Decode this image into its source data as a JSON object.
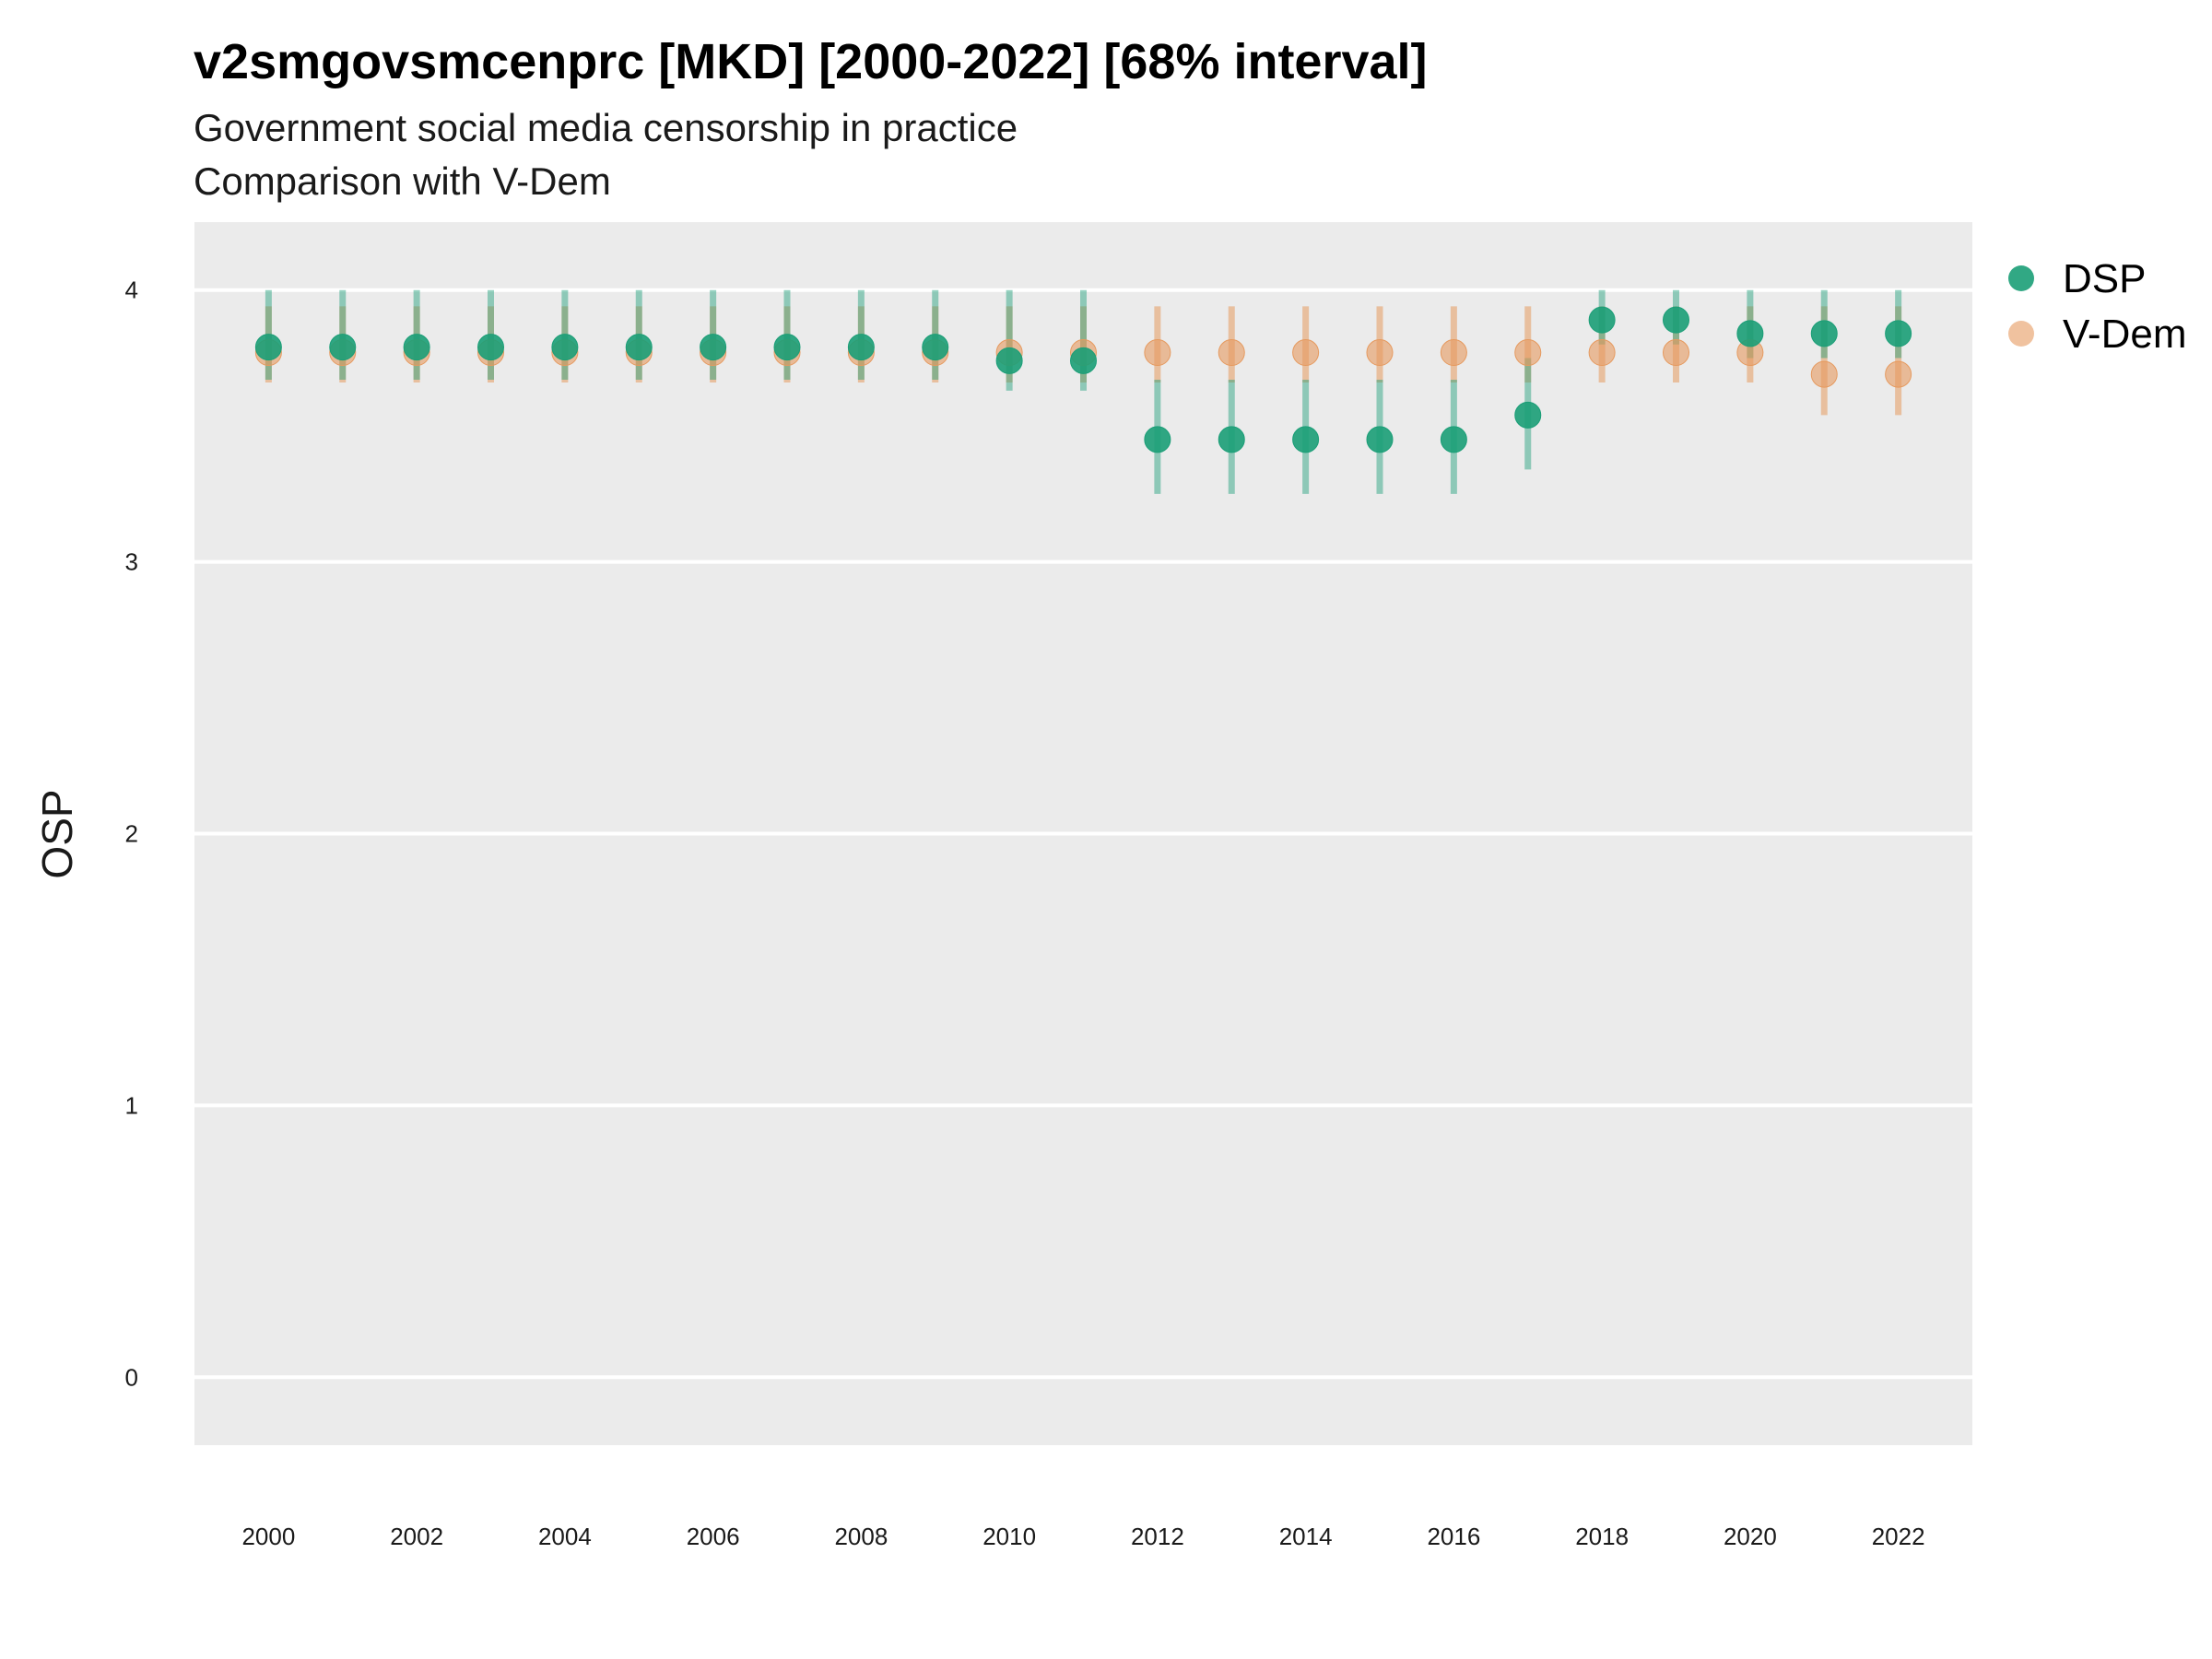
{
  "title": "v2smgovsmcenprc [MKD] [2000-2022] [68% interval]",
  "subtitle": "Government social media censorship in practice",
  "subtitle2": "Comparison with V-Dem",
  "chart_data": {
    "type": "scatter",
    "ylabel": "OSP",
    "xlabel": "",
    "ylim": [
      -0.25,
      4.25
    ],
    "y_ticks": [
      0,
      1,
      2,
      3,
      4
    ],
    "x_ticks": [
      2000,
      2002,
      2004,
      2006,
      2008,
      2010,
      2012,
      2014,
      2016,
      2018,
      2020,
      2022
    ],
    "x": [
      2000,
      2001,
      2002,
      2003,
      2004,
      2005,
      2006,
      2007,
      2008,
      2009,
      2010,
      2011,
      2012,
      2013,
      2014,
      2015,
      2016,
      2017,
      2018,
      2019,
      2020,
      2021,
      2022
    ],
    "grid": true,
    "legend": "right",
    "series": [
      {
        "name": "DSP",
        "color": "#1b9e77",
        "values": [
          3.79,
          3.79,
          3.79,
          3.79,
          3.79,
          3.79,
          3.79,
          3.79,
          3.79,
          3.79,
          3.74,
          3.74,
          3.45,
          3.45,
          3.45,
          3.45,
          3.45,
          3.54,
          3.89,
          3.89,
          3.84,
          3.84,
          3.84
        ],
        "low": [
          3.67,
          3.67,
          3.67,
          3.67,
          3.67,
          3.67,
          3.67,
          3.67,
          3.67,
          3.67,
          3.63,
          3.63,
          3.25,
          3.25,
          3.25,
          3.25,
          3.25,
          3.34,
          3.8,
          3.8,
          3.75,
          3.75,
          3.75
        ],
        "high": [
          4.0,
          4.0,
          4.0,
          4.0,
          4.0,
          4.0,
          4.0,
          4.0,
          4.0,
          4.0,
          4.0,
          4.0,
          3.67,
          3.67,
          3.67,
          3.67,
          3.67,
          3.75,
          4.0,
          4.0,
          4.0,
          4.0,
          4.0
        ]
      },
      {
        "name": "V-Dem",
        "color": "#e69a5f",
        "values": [
          3.77,
          3.77,
          3.77,
          3.77,
          3.77,
          3.77,
          3.77,
          3.77,
          3.77,
          3.77,
          3.77,
          3.77,
          3.77,
          3.77,
          3.77,
          3.77,
          3.77,
          3.77,
          3.77,
          3.77,
          3.77,
          3.69,
          3.69
        ],
        "low": [
          3.66,
          3.66,
          3.66,
          3.66,
          3.66,
          3.66,
          3.66,
          3.66,
          3.66,
          3.66,
          3.66,
          3.66,
          3.66,
          3.66,
          3.66,
          3.66,
          3.66,
          3.66,
          3.66,
          3.66,
          3.66,
          3.54,
          3.54
        ],
        "high": [
          3.94,
          3.94,
          3.94,
          3.94,
          3.94,
          3.94,
          3.94,
          3.94,
          3.94,
          3.94,
          3.94,
          3.94,
          3.94,
          3.94,
          3.94,
          3.94,
          3.94,
          3.94,
          3.94,
          3.94,
          3.94,
          3.94,
          3.94
        ]
      }
    ]
  }
}
